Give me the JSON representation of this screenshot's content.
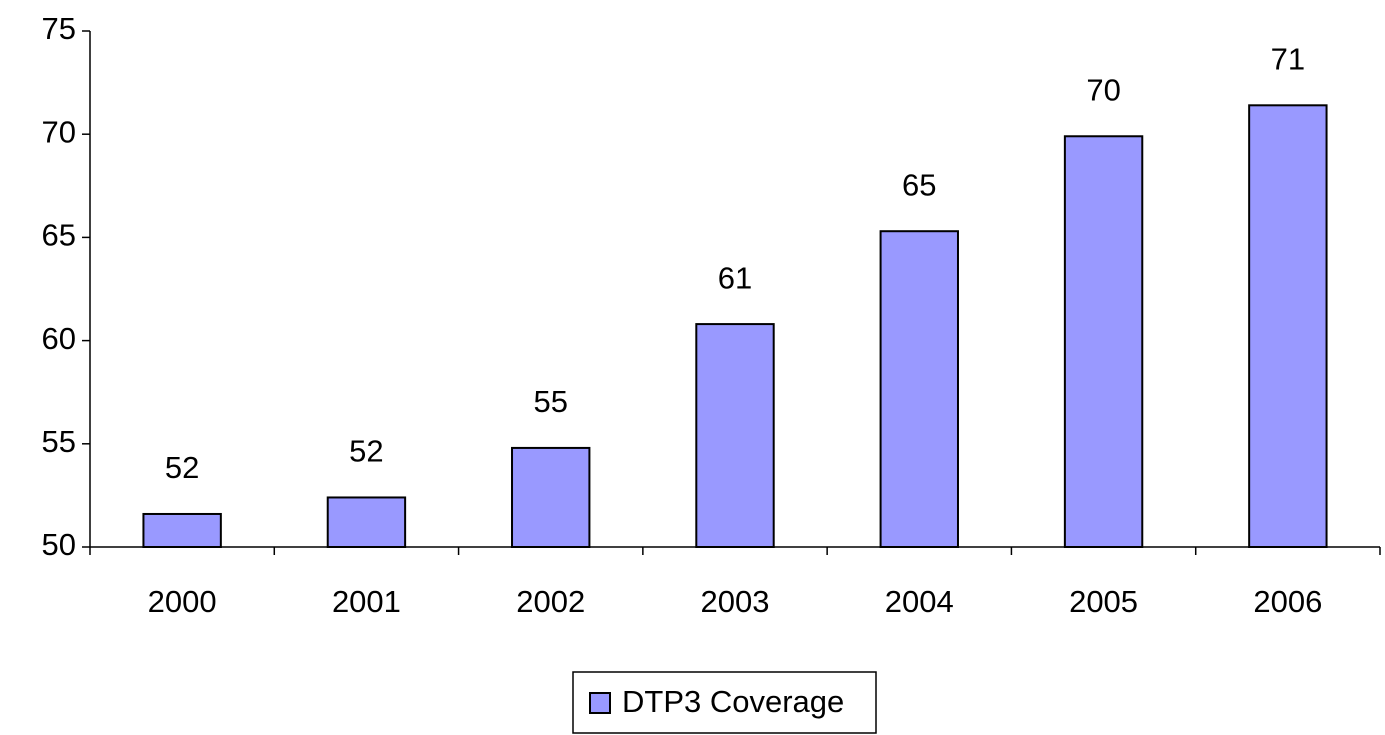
{
  "chart_data": {
    "type": "bar",
    "categories": [
      "2000",
      "2001",
      "2002",
      "2003",
      "2004",
      "2005",
      "2006"
    ],
    "series": [
      {
        "name": "DTP3 Coverage",
        "color": "#9999ff",
        "values": [
          51.6,
          52.4,
          54.8,
          60.8,
          65.3,
          69.9,
          71.4
        ],
        "value_labels": [
          "52",
          "52",
          "55",
          "61",
          "65",
          "70",
          "71"
        ]
      }
    ],
    "ylim": [
      50,
      75
    ],
    "yticks": [
      50,
      55,
      60,
      65,
      70,
      75
    ],
    "grid": false,
    "legend": "bottom"
  }
}
